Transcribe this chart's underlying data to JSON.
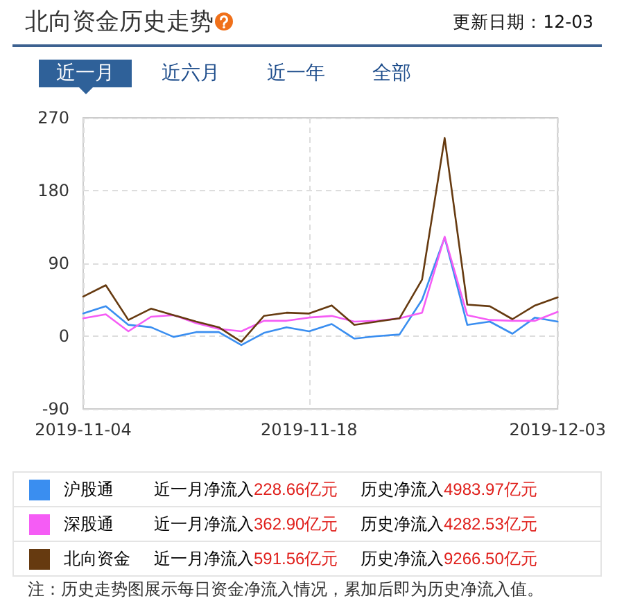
{
  "chart_data": {
    "type": "line",
    "title": "北向资金历史走势",
    "subtitle": "更新日期：12-03",
    "categories": [
      "2019-11-04",
      null,
      null,
      null,
      null,
      null,
      null,
      null,
      null,
      null,
      "2019-11-18",
      null,
      null,
      null,
      null,
      null,
      null,
      null,
      null,
      null,
      null,
      "2019-12-03"
    ],
    "series": [
      {
        "name": "沪股通",
        "color": "#3a8ef0",
        "values": [
          28,
          37,
          14,
          11,
          -1,
          5,
          5,
          -11,
          4,
          11,
          6,
          15,
          -3,
          0,
          2,
          45,
          122,
          14,
          18,
          3,
          23,
          18
        ]
      },
      {
        "name": "深股通",
        "color": "#f55cf5",
        "values": [
          22,
          27,
          6,
          24,
          26,
          16,
          9,
          6,
          19,
          19,
          23,
          25,
          18,
          19,
          22,
          29,
          123,
          26,
          20,
          19,
          19,
          30
        ]
      },
      {
        "name": "北向资金",
        "color": "#663a10",
        "values": [
          49,
          63,
          20,
          34,
          26,
          18,
          11,
          -7,
          25,
          29,
          28,
          38,
          14,
          18,
          22,
          70,
          245,
          39,
          37,
          21,
          38,
          48
        ]
      }
    ],
    "ylim": [
      -90,
      270
    ],
    "yticks": [
      -90,
      0,
      90,
      180,
      270
    ],
    "grid": true,
    "legend": "bottom",
    "marker": "none",
    "annotations": [
      "近一月",
      "近六月",
      "近一年",
      "全部",
      "近一月净流入228.66亿元",
      "历史净流入4983.97亿元",
      "近一月净流入362.90亿元",
      "历史净流入4282.53亿元",
      "近一月净流入591.56亿元",
      "历史净流入9266.50亿元",
      "注：历史走势图展示每日资金净流入情况，累加后即为历史净流入值。"
    ]
  }
}
